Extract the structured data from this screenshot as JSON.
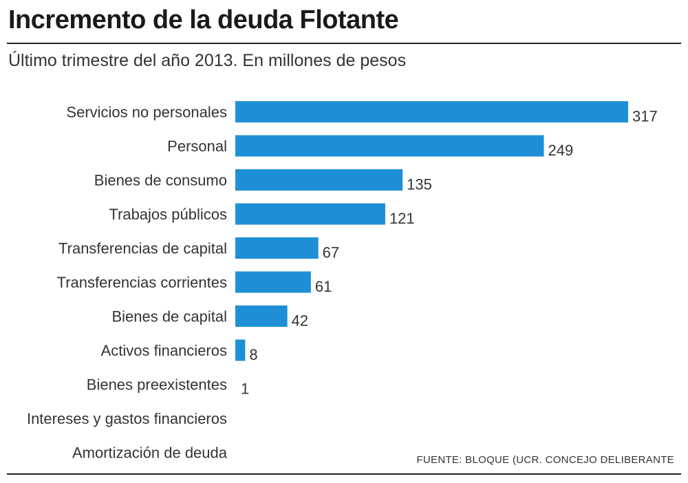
{
  "header": {
    "title": "Incremento de la deuda Flotante",
    "subtitle": "Último trimestre del año 2013. En millones de pesos"
  },
  "footer": {
    "source": "FUENTE: BLOQUE (UCR. CONCEJO DELIBERANTE"
  },
  "colors": {
    "bar": "#1E8FD6",
    "text": "#333333"
  },
  "chart_data": {
    "type": "bar",
    "orientation": "horizontal",
    "categories": [
      "Servicios no personales",
      "Personal",
      "Bienes de consumo",
      "Trabajos públicos",
      "Transferencias de capital",
      "Transferencias corrientes",
      "Bienes de capital",
      "Activos financieros",
      "Bienes preexistentes",
      "Intereses y gastos financieros",
      "Amortización de deuda"
    ],
    "values": [
      317,
      249,
      135,
      121,
      67,
      61,
      42,
      8,
      1,
      null,
      null
    ],
    "value_labels": [
      "317",
      "249",
      "135",
      "121",
      "67",
      "61",
      "42",
      "8",
      "1",
      "",
      ""
    ],
    "title": "Incremento de la deuda Flotante",
    "subtitle": "Último trimestre del año 2013. En millones de pesos",
    "xlabel": "",
    "ylabel": "",
    "xlim": [
      0,
      317
    ],
    "grid": false,
    "legend": "none"
  }
}
